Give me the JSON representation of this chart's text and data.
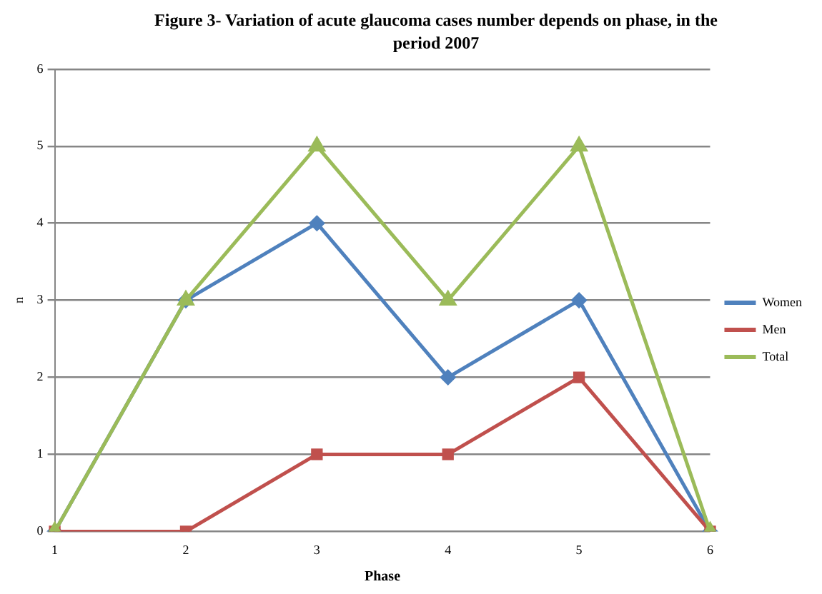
{
  "chart_data": {
    "type": "line",
    "title": "Figure 3- Variation of acute glaucoma cases number depends on phase, in the period 2007",
    "xlabel": "Phase",
    "ylabel": "n",
    "categories": [
      "1",
      "2",
      "3",
      "4",
      "5",
      "6"
    ],
    "series": [
      {
        "name": "Women",
        "color": "#4f81bd",
        "marker": "diamond",
        "values": [
          0,
          3,
          4,
          2,
          3,
          0
        ]
      },
      {
        "name": "Men",
        "color": "#c0504d",
        "marker": "square",
        "values": [
          0,
          0,
          1,
          1,
          2,
          0
        ]
      },
      {
        "name": "Total",
        "color": "#9bbb59",
        "marker": "triangle",
        "values": [
          0,
          3,
          5,
          3,
          5,
          0
        ]
      }
    ],
    "ylim": [
      0,
      6
    ],
    "yticks": [
      0,
      1,
      2,
      3,
      4,
      5,
      6
    ],
    "grid": "y",
    "legend": "right",
    "line_style": "solid"
  }
}
